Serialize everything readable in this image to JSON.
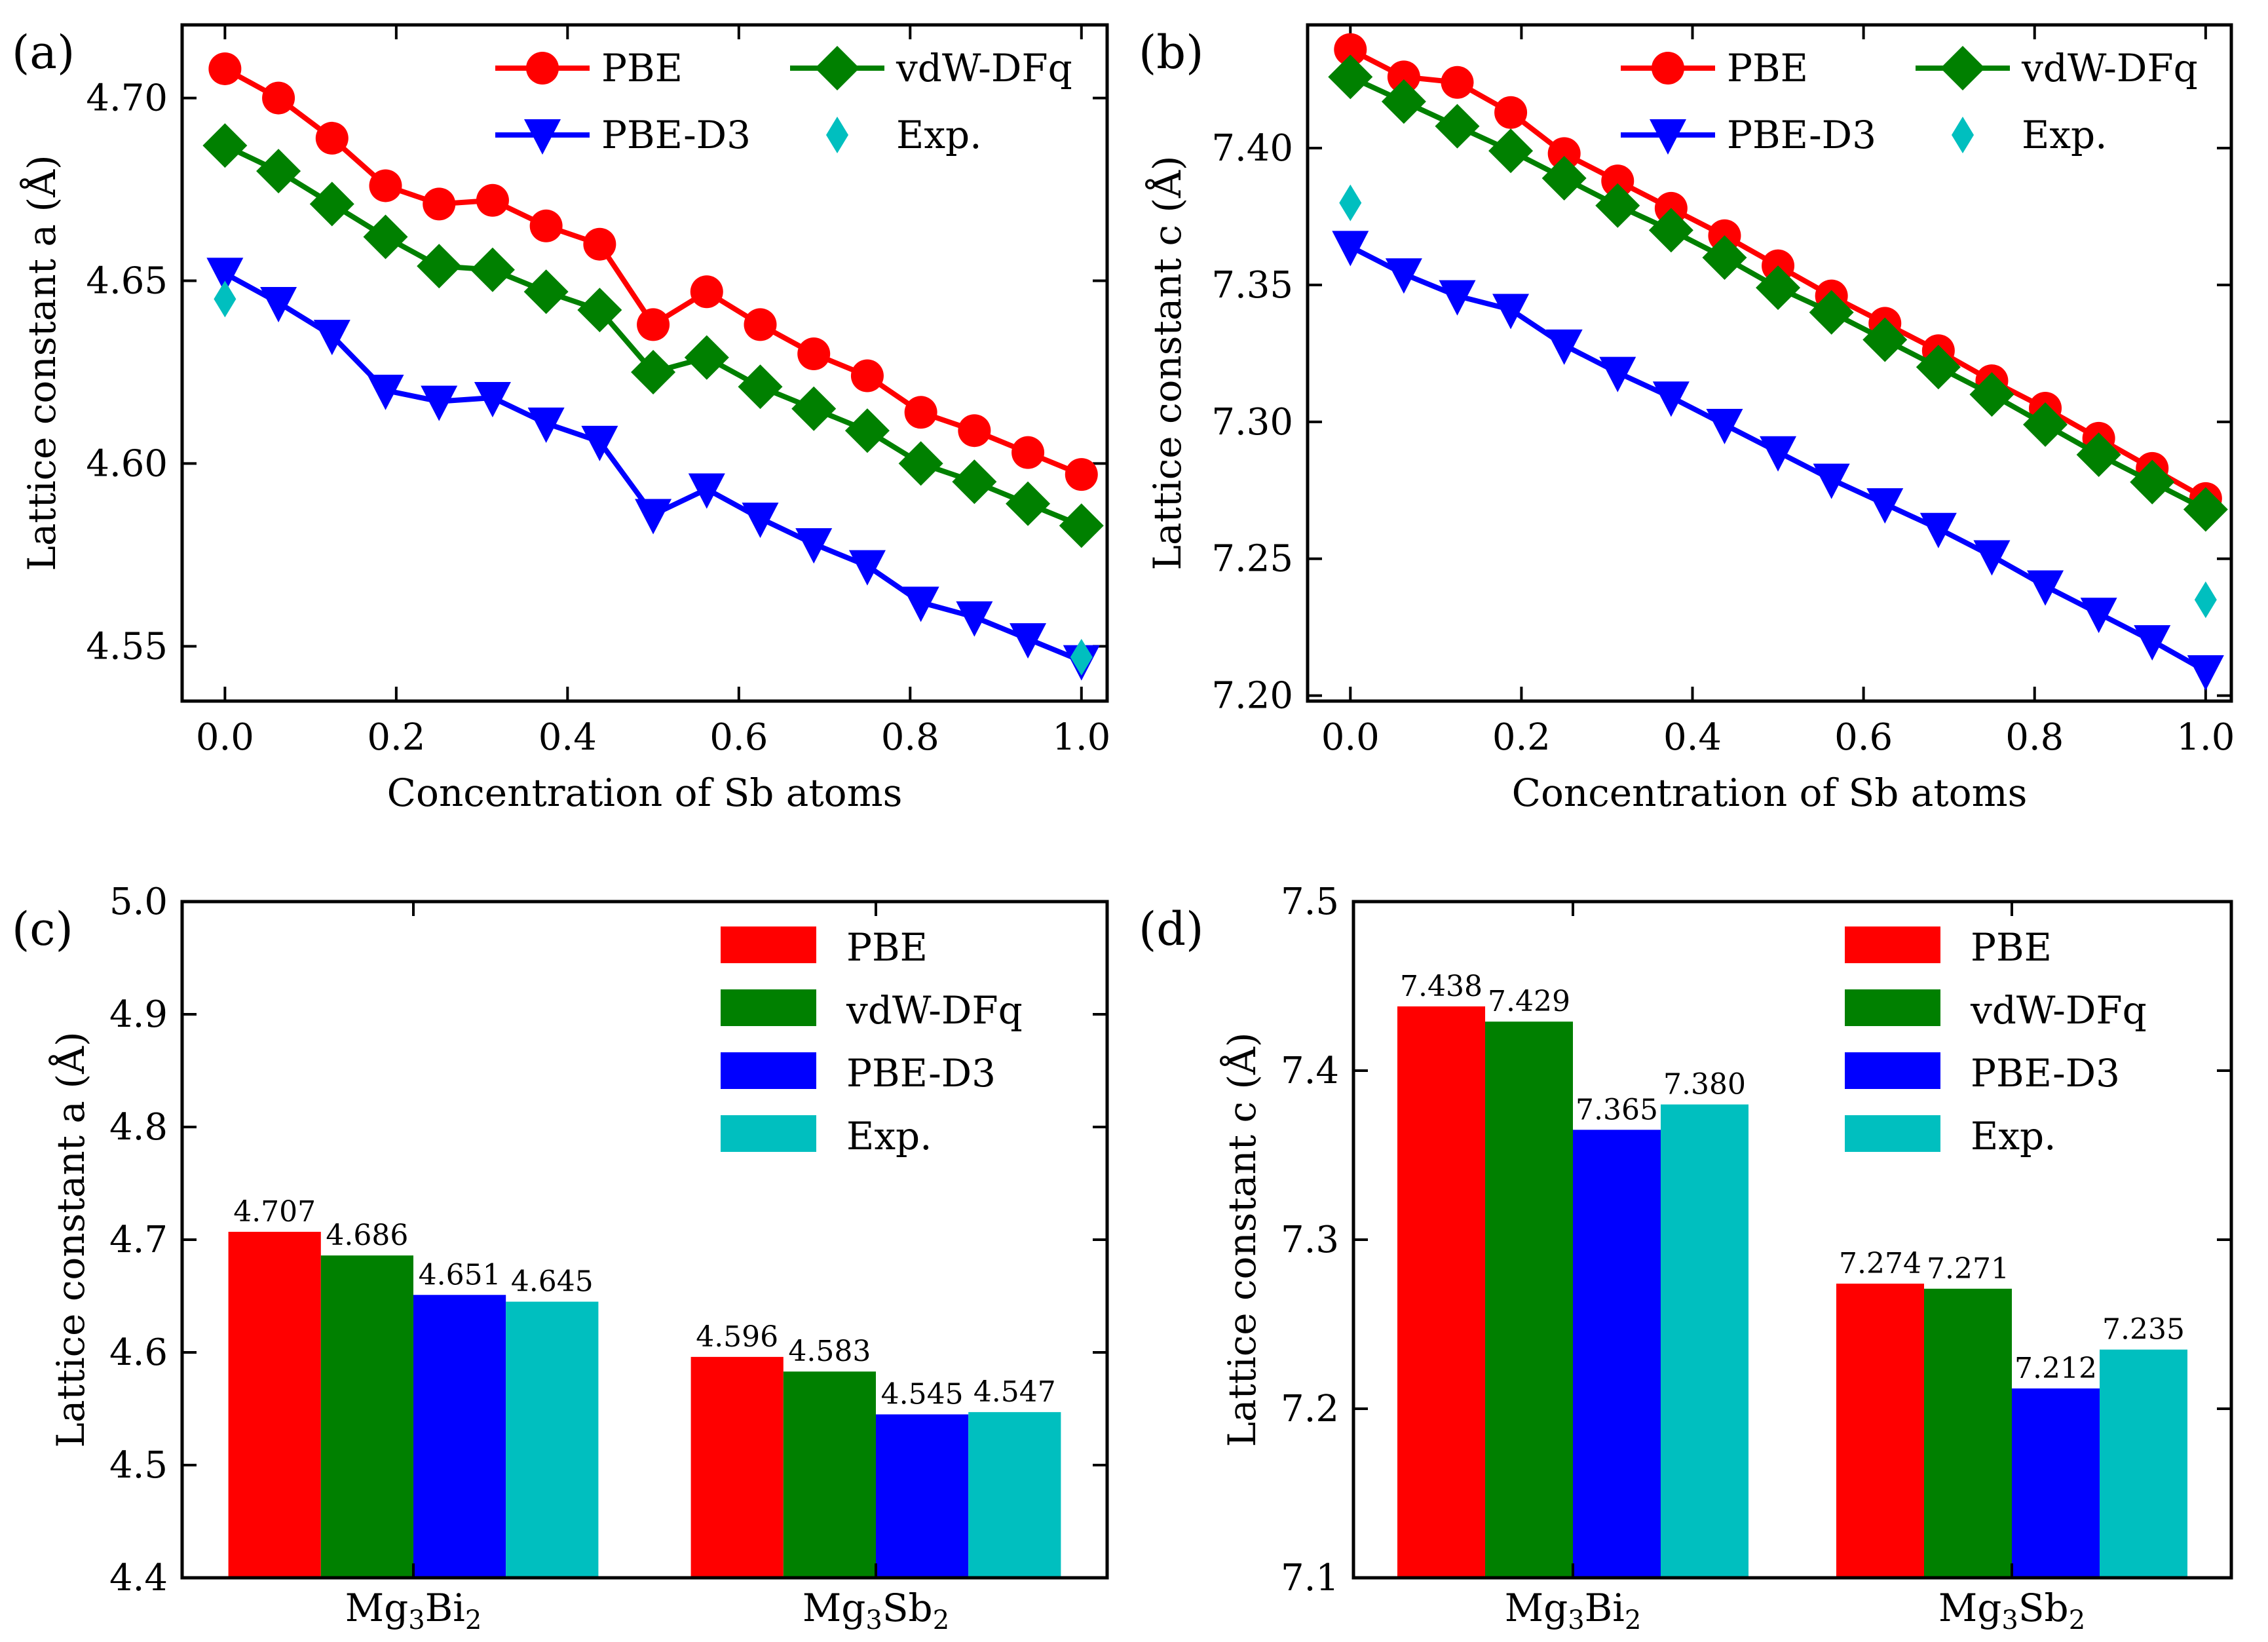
{
  "colors": {
    "PBE": "#ff0000",
    "vdW-DFq": "#008000",
    "PBE-D3": "#0000ff",
    "Exp.": "#00bfbf"
  },
  "chart_data": [
    {
      "id": "a",
      "type": "line",
      "panel_label": "(a)",
      "title": "",
      "xlabel": "Concentration of Sb atoms",
      "ylabel": "Lattice constant a (Å)",
      "xlim": [
        -0.05,
        1.03
      ],
      "ylim": [
        4.535,
        4.72
      ],
      "xticks": [
        0.0,
        0.2,
        0.4,
        0.6,
        0.8,
        1.0
      ],
      "xtick_labels": [
        "0.0",
        "0.2",
        "0.4",
        "0.6",
        "0.8",
        "1.0"
      ],
      "yticks": [
        4.55,
        4.6,
        4.65,
        4.7
      ],
      "ytick_labels": [
        "4.55",
        "4.60",
        "4.65",
        "4.70"
      ],
      "legend": {
        "position": "top-right",
        "columns": 2
      },
      "x": [
        0.0,
        0.0625,
        0.125,
        0.1875,
        0.25,
        0.3125,
        0.375,
        0.4375,
        0.5,
        0.5625,
        0.625,
        0.6875,
        0.75,
        0.8125,
        0.875,
        0.9375,
        1.0
      ],
      "series": [
        {
          "name": "PBE",
          "marker": "circle",
          "values": [
            4.708,
            4.7,
            4.689,
            4.676,
            4.671,
            4.672,
            4.665,
            4.66,
            4.638,
            4.647,
            4.638,
            4.63,
            4.624,
            4.614,
            4.609,
            4.603,
            4.597
          ]
        },
        {
          "name": "vdW-DFq",
          "marker": "diamond",
          "values": [
            4.687,
            4.68,
            4.671,
            4.662,
            4.654,
            4.653,
            4.647,
            4.642,
            4.625,
            4.629,
            4.621,
            4.615,
            4.609,
            4.6,
            4.595,
            4.589,
            4.583
          ]
        },
        {
          "name": "PBE-D3",
          "marker": "triangle-down",
          "values": [
            4.652,
            4.644,
            4.635,
            4.62,
            4.617,
            4.618,
            4.611,
            4.606,
            4.586,
            4.593,
            4.585,
            4.578,
            4.572,
            4.562,
            4.558,
            4.552,
            4.546
          ]
        },
        {
          "name": "Exp.",
          "marker": "thin-diamond",
          "points": [
            [
              0.0,
              4.645
            ],
            [
              1.0,
              4.547
            ]
          ]
        }
      ]
    },
    {
      "id": "b",
      "type": "line",
      "panel_label": "(b)",
      "title": "",
      "xlabel": "Concentration of Sb atoms",
      "ylabel": "Lattice constant c (Å)",
      "xlim": [
        -0.05,
        1.03
      ],
      "ylim": [
        7.198,
        7.445
      ],
      "xticks": [
        0.0,
        0.2,
        0.4,
        0.6,
        0.8,
        1.0
      ],
      "xtick_labels": [
        "0.0",
        "0.2",
        "0.4",
        "0.6",
        "0.8",
        "1.0"
      ],
      "yticks": [
        7.2,
        7.25,
        7.3,
        7.35,
        7.4
      ],
      "ytick_labels": [
        "7.20",
        "7.25",
        "7.30",
        "7.35",
        "7.40"
      ],
      "legend": {
        "position": "top-right",
        "columns": 2
      },
      "x": [
        0.0,
        0.0625,
        0.125,
        0.1875,
        0.25,
        0.3125,
        0.375,
        0.4375,
        0.5,
        0.5625,
        0.625,
        0.6875,
        0.75,
        0.8125,
        0.875,
        0.9375,
        1.0
      ],
      "series": [
        {
          "name": "PBE",
          "marker": "circle",
          "values": [
            7.436,
            7.426,
            7.424,
            7.413,
            7.398,
            7.388,
            7.378,
            7.368,
            7.357,
            7.346,
            7.336,
            7.326,
            7.315,
            7.305,
            7.294,
            7.283,
            7.272
          ]
        },
        {
          "name": "vdW-DFq",
          "marker": "diamond",
          "values": [
            7.426,
            7.417,
            7.408,
            7.399,
            7.389,
            7.379,
            7.37,
            7.36,
            7.349,
            7.34,
            7.33,
            7.32,
            7.31,
            7.299,
            7.288,
            7.278,
            7.268
          ]
        },
        {
          "name": "PBE-D3",
          "marker": "triangle-down",
          "values": [
            7.364,
            7.354,
            7.346,
            7.341,
            7.328,
            7.318,
            7.309,
            7.299,
            7.289,
            7.279,
            7.27,
            7.261,
            7.251,
            7.24,
            7.23,
            7.22,
            7.209
          ]
        },
        {
          "name": "Exp.",
          "marker": "thin-diamond",
          "points": [
            [
              0.0,
              7.38
            ],
            [
              1.0,
              7.235
            ]
          ]
        }
      ]
    },
    {
      "id": "c",
      "type": "bar",
      "panel_label": "(c)",
      "title": "",
      "xlabel": "",
      "ylabel": "Lattice constant a (Å)",
      "ylim": [
        4.4,
        5.0
      ],
      "yticks": [
        4.4,
        4.5,
        4.6,
        4.7,
        4.8,
        4.9,
        5.0
      ],
      "ytick_labels": [
        "4.4",
        "4.5",
        "4.6",
        "4.7",
        "4.8",
        "4.9",
        "5.0"
      ],
      "categories": [
        "Mg3Bi2",
        "Mg3Sb2"
      ],
      "legend": {
        "position": "top-right",
        "columns": 1
      },
      "series": [
        {
          "name": "PBE",
          "values": [
            4.707,
            4.596
          ],
          "labels": [
            "4.707",
            "4.596"
          ]
        },
        {
          "name": "vdW-DFq",
          "values": [
            4.686,
            4.583
          ],
          "labels": [
            "4.686",
            "4.583"
          ]
        },
        {
          "name": "PBE-D3",
          "values": [
            4.651,
            4.545
          ],
          "labels": [
            "4.651",
            "4.545"
          ]
        },
        {
          "name": "Exp.",
          "values": [
            4.645,
            4.547
          ],
          "labels": [
            "4.645",
            "4.547"
          ]
        }
      ]
    },
    {
      "id": "d",
      "type": "bar",
      "panel_label": "(d)",
      "title": "",
      "xlabel": "",
      "ylabel": "Lattice constant c (Å)",
      "ylim": [
        7.1,
        7.5
      ],
      "yticks": [
        7.1,
        7.2,
        7.3,
        7.4,
        7.5
      ],
      "ytick_labels": [
        "7.1",
        "7.2",
        "7.3",
        "7.4",
        "7.5"
      ],
      "categories": [
        "Mg3Bi2",
        "Mg3Sb2"
      ],
      "legend": {
        "position": "top-right",
        "columns": 1
      },
      "series": [
        {
          "name": "PBE",
          "values": [
            7.438,
            7.274
          ],
          "labels": [
            "7.438",
            "7.274"
          ]
        },
        {
          "name": "vdW-DFq",
          "values": [
            7.429,
            7.271
          ],
          "labels": [
            "7.429",
            "7.271"
          ]
        },
        {
          "name": "PBE-D3",
          "values": [
            7.365,
            7.212
          ],
          "labels": [
            "7.365",
            "7.212"
          ]
        },
        {
          "name": "Exp.",
          "values": [
            7.38,
            7.235
          ],
          "labels": [
            "7.380",
            "7.235"
          ]
        }
      ]
    }
  ]
}
